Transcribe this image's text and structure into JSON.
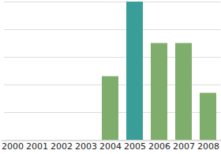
{
  "chart_data": {
    "type": "bar",
    "categories": [
      "2000",
      "2001",
      "2002",
      "2003",
      "2004",
      "2005",
      "2006",
      "2007",
      "2008"
    ],
    "values": [
      null,
      null,
      null,
      null,
      2.3,
      5,
      3.5,
      3.5,
      1.7
    ],
    "colors": [
      "#7fad6b",
      "#7fad6b",
      "#7fad6b",
      "#7fad6b",
      "#7fad6b",
      "#3a9e98",
      "#7fad6b",
      "#7fad6b",
      "#7fad6b"
    ],
    "ylim": [
      0,
      5
    ],
    "yticks": [
      0,
      1,
      2,
      3,
      4,
      5
    ],
    "grid": true,
    "tick_labels": "x"
  }
}
